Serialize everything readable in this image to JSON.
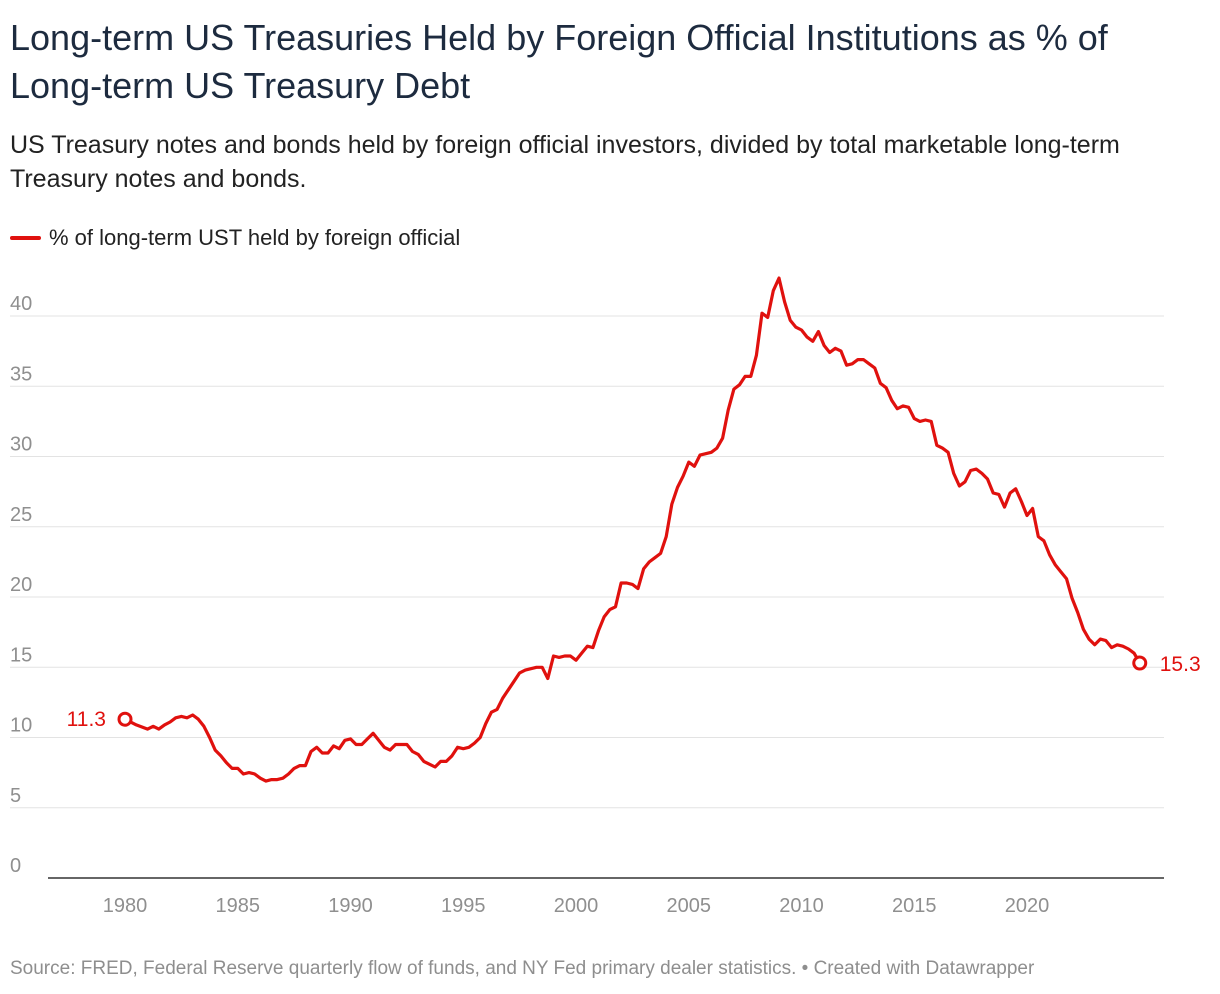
{
  "chart_data": {
    "type": "line",
    "title": "Long-term US Treasuries Held by Foreign Official Institutions as % of Long-term US Treasury Debt",
    "subtitle": "US Treasury notes and bonds held by foreign official investors, divided by total marketable long-term Treasury notes and bonds.",
    "xlabel": "",
    "ylabel": "",
    "xlim": [
      1977,
      2026.6
    ],
    "ylim": [
      0,
      43
    ],
    "yticks": [
      0,
      5,
      10,
      15,
      20,
      25,
      30,
      35,
      40
    ],
    "xticks": [
      1980,
      1985,
      1990,
      1995,
      2000,
      2005,
      2010,
      2015,
      2020
    ],
    "grid": "horizontal",
    "legend_position": "top-left",
    "series": [
      {
        "name": "% of long-term UST held by foreign official",
        "color": "#e0110e",
        "start_label": "11.3",
        "end_label": "15.3",
        "points": [
          [
            1980.0,
            11.3
          ],
          [
            1980.5,
            10.9
          ],
          [
            1981.0,
            10.6
          ],
          [
            1981.25,
            10.8
          ],
          [
            1981.5,
            10.6
          ],
          [
            1981.75,
            10.9
          ],
          [
            1982.0,
            11.1
          ],
          [
            1982.25,
            11.4
          ],
          [
            1982.5,
            11.5
          ],
          [
            1982.75,
            11.4
          ],
          [
            1983.0,
            11.6
          ],
          [
            1983.25,
            11.3
          ],
          [
            1983.5,
            10.8
          ],
          [
            1983.75,
            10.0
          ],
          [
            1984.0,
            9.1
          ],
          [
            1984.25,
            8.7
          ],
          [
            1984.5,
            8.2
          ],
          [
            1984.75,
            7.8
          ],
          [
            1985.0,
            7.8
          ],
          [
            1985.25,
            7.4
          ],
          [
            1985.5,
            7.5
          ],
          [
            1985.75,
            7.4
          ],
          [
            1986.0,
            7.1
          ],
          [
            1986.25,
            6.9
          ],
          [
            1986.5,
            7.0
          ],
          [
            1986.75,
            7.0
          ],
          [
            1987.0,
            7.1
          ],
          [
            1987.25,
            7.4
          ],
          [
            1987.5,
            7.8
          ],
          [
            1987.75,
            8.0
          ],
          [
            1988.0,
            8.0
          ],
          [
            1988.25,
            9.0
          ],
          [
            1988.5,
            9.3
          ],
          [
            1988.75,
            8.9
          ],
          [
            1989.0,
            8.9
          ],
          [
            1989.25,
            9.4
          ],
          [
            1989.5,
            9.2
          ],
          [
            1989.75,
            9.8
          ],
          [
            1990.0,
            9.9
          ],
          [
            1990.25,
            9.5
          ],
          [
            1990.5,
            9.5
          ],
          [
            1990.75,
            9.9
          ],
          [
            1991.0,
            10.3
          ],
          [
            1991.25,
            9.8
          ],
          [
            1991.5,
            9.3
          ],
          [
            1991.75,
            9.1
          ],
          [
            1992.0,
            9.5
          ],
          [
            1992.25,
            9.5
          ],
          [
            1992.5,
            9.5
          ],
          [
            1992.75,
            9.0
          ],
          [
            1993.0,
            8.8
          ],
          [
            1993.25,
            8.3
          ],
          [
            1993.5,
            8.1
          ],
          [
            1993.75,
            7.9
          ],
          [
            1994.0,
            8.3
          ],
          [
            1994.25,
            8.3
          ],
          [
            1994.5,
            8.7
          ],
          [
            1994.75,
            9.3
          ],
          [
            1995.0,
            9.2
          ],
          [
            1995.25,
            9.3
          ],
          [
            1995.5,
            9.6
          ],
          [
            1995.75,
            10.0
          ],
          [
            1996.0,
            11.0
          ],
          [
            1996.25,
            11.8
          ],
          [
            1996.5,
            12.0
          ],
          [
            1996.75,
            12.8
          ],
          [
            1997.0,
            13.4
          ],
          [
            1997.25,
            14.0
          ],
          [
            1997.5,
            14.6
          ],
          [
            1997.75,
            14.8
          ],
          [
            1998.0,
            14.9
          ],
          [
            1998.25,
            15.0
          ],
          [
            1998.5,
            15.0
          ],
          [
            1998.75,
            14.2
          ],
          [
            1999.0,
            15.8
          ],
          [
            1999.25,
            15.7
          ],
          [
            1999.5,
            15.8
          ],
          [
            1999.75,
            15.8
          ],
          [
            2000.0,
            15.5
          ],
          [
            2000.25,
            16.0
          ],
          [
            2000.5,
            16.5
          ],
          [
            2000.75,
            16.4
          ],
          [
            2001.0,
            17.6
          ],
          [
            2001.25,
            18.6
          ],
          [
            2001.5,
            19.1
          ],
          [
            2001.75,
            19.3
          ],
          [
            2002.0,
            21.0
          ],
          [
            2002.25,
            21.0
          ],
          [
            2002.5,
            20.9
          ],
          [
            2002.75,
            20.6
          ],
          [
            2003.0,
            22.0
          ],
          [
            2003.25,
            22.5
          ],
          [
            2003.5,
            22.8
          ],
          [
            2003.75,
            23.1
          ],
          [
            2004.0,
            24.3
          ],
          [
            2004.25,
            26.6
          ],
          [
            2004.5,
            27.8
          ],
          [
            2004.75,
            28.6
          ],
          [
            2005.0,
            29.6
          ],
          [
            2005.25,
            29.3
          ],
          [
            2005.5,
            30.1
          ],
          [
            2005.75,
            30.2
          ],
          [
            2006.0,
            30.3
          ],
          [
            2006.25,
            30.6
          ],
          [
            2006.5,
            31.3
          ],
          [
            2006.75,
            33.3
          ],
          [
            2007.0,
            34.8
          ],
          [
            2007.25,
            35.1
          ],
          [
            2007.5,
            35.7
          ],
          [
            2007.75,
            35.7
          ],
          [
            2008.0,
            37.2
          ],
          [
            2008.25,
            40.2
          ],
          [
            2008.5,
            39.9
          ],
          [
            2008.75,
            41.8
          ],
          [
            2009.0,
            42.7
          ],
          [
            2009.25,
            41.0
          ],
          [
            2009.5,
            39.7
          ],
          [
            2009.75,
            39.2
          ],
          [
            2010.0,
            39.0
          ],
          [
            2010.25,
            38.5
          ],
          [
            2010.5,
            38.2
          ],
          [
            2010.75,
            38.9
          ],
          [
            2011.0,
            37.9
          ],
          [
            2011.25,
            37.4
          ],
          [
            2011.5,
            37.7
          ],
          [
            2011.75,
            37.5
          ],
          [
            2012.0,
            36.5
          ],
          [
            2012.25,
            36.6
          ],
          [
            2012.5,
            36.9
          ],
          [
            2012.75,
            36.9
          ],
          [
            2013.0,
            36.6
          ],
          [
            2013.25,
            36.3
          ],
          [
            2013.5,
            35.2
          ],
          [
            2013.75,
            34.9
          ],
          [
            2014.0,
            34.0
          ],
          [
            2014.25,
            33.4
          ],
          [
            2014.5,
            33.6
          ],
          [
            2014.75,
            33.5
          ],
          [
            2015.0,
            32.7
          ],
          [
            2015.25,
            32.5
          ],
          [
            2015.5,
            32.6
          ],
          [
            2015.75,
            32.5
          ],
          [
            2016.0,
            30.8
          ],
          [
            2016.25,
            30.6
          ],
          [
            2016.5,
            30.3
          ],
          [
            2016.75,
            28.8
          ],
          [
            2017.0,
            27.9
          ],
          [
            2017.25,
            28.2
          ],
          [
            2017.5,
            29.0
          ],
          [
            2017.75,
            29.1
          ],
          [
            2018.0,
            28.8
          ],
          [
            2018.25,
            28.4
          ],
          [
            2018.5,
            27.4
          ],
          [
            2018.75,
            27.3
          ],
          [
            2019.0,
            26.4
          ],
          [
            2019.25,
            27.4
          ],
          [
            2019.5,
            27.7
          ],
          [
            2019.75,
            26.8
          ],
          [
            2020.0,
            25.8
          ],
          [
            2020.25,
            26.3
          ],
          [
            2020.5,
            24.3
          ],
          [
            2020.75,
            24.0
          ],
          [
            2021.0,
            23.0
          ],
          [
            2021.25,
            22.3
          ],
          [
            2021.5,
            21.8
          ],
          [
            2021.75,
            21.3
          ],
          [
            2022.0,
            19.9
          ],
          [
            2022.25,
            18.9
          ],
          [
            2022.5,
            17.7
          ],
          [
            2022.75,
            17.0
          ],
          [
            2023.0,
            16.6
          ],
          [
            2023.25,
            17.0
          ],
          [
            2023.5,
            16.9
          ],
          [
            2023.75,
            16.4
          ],
          [
            2024.0,
            16.6
          ],
          [
            2024.25,
            16.5
          ],
          [
            2024.5,
            16.3
          ],
          [
            2024.75,
            16.0
          ],
          [
            2025.0,
            15.3
          ]
        ]
      }
    ]
  },
  "footer": {
    "source": "Source: FRED, Federal Reserve quarterly flow of funds, and NY Fed primary dealer statistics. • Created with Datawrapper"
  }
}
